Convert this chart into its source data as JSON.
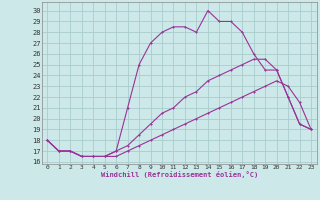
{
  "xlabel": "Windchill (Refroidissement éolien,°C)",
  "bg_color": "#cce8e8",
  "grid_color": "#aacccc",
  "line_color": "#993399",
  "x_ticks": [
    0,
    1,
    2,
    3,
    4,
    5,
    6,
    7,
    8,
    9,
    10,
    11,
    12,
    13,
    14,
    15,
    16,
    17,
    18,
    19,
    20,
    21,
    22,
    23
  ],
  "y_ticks": [
    16,
    17,
    18,
    19,
    20,
    21,
    22,
    23,
    24,
    25,
    26,
    27,
    28,
    29,
    30
  ],
  "ylim": [
    15.8,
    30.8
  ],
  "xlim": [
    -0.5,
    23.5
  ],
  "line1_x": [
    0,
    1,
    2,
    3,
    4,
    5,
    6,
    7,
    8,
    9,
    10,
    11,
    12,
    13,
    14,
    15,
    16,
    17,
    18,
    19,
    20,
    21,
    22,
    23
  ],
  "line1_y": [
    18,
    17,
    17,
    16.5,
    16.5,
    16.5,
    17,
    21,
    25,
    27,
    28,
    28.5,
    28.5,
    28,
    30,
    29,
    29,
    28,
    26,
    24.5,
    24.5,
    22,
    19.5,
    19
  ],
  "line2_x": [
    0,
    1,
    2,
    3,
    4,
    5,
    6,
    7,
    8,
    9,
    10,
    11,
    12,
    13,
    14,
    15,
    16,
    17,
    18,
    19,
    20,
    21,
    22,
    23
  ],
  "line2_y": [
    18,
    17,
    17,
    16.5,
    16.5,
    16.5,
    17,
    17.5,
    18.5,
    19.5,
    20.5,
    21,
    22,
    22.5,
    23.5,
    24,
    24.5,
    25,
    25.5,
    25.5,
    24.5,
    22,
    19.5,
    19
  ],
  "line3_x": [
    0,
    1,
    2,
    3,
    4,
    5,
    6,
    7,
    8,
    9,
    10,
    11,
    12,
    13,
    14,
    15,
    16,
    17,
    18,
    19,
    20,
    21,
    22,
    23
  ],
  "line3_y": [
    18,
    17,
    17,
    16.5,
    16.5,
    16.5,
    16.5,
    17,
    17.5,
    18,
    18.5,
    19,
    19.5,
    20,
    20.5,
    21,
    21.5,
    22,
    22.5,
    23,
    23.5,
    23,
    21.5,
    19
  ]
}
